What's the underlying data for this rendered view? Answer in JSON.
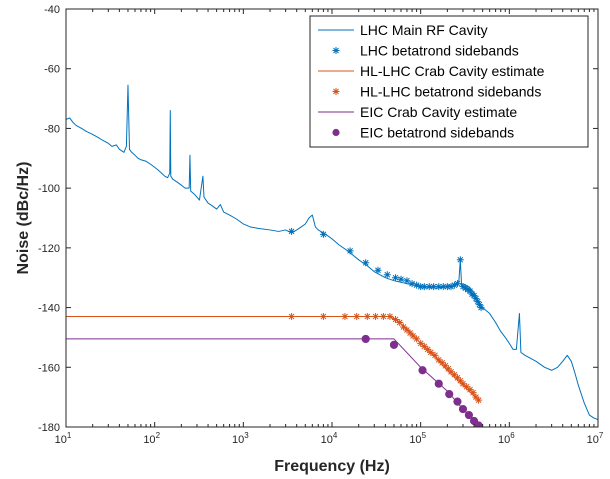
{
  "chart_data": {
    "type": "line",
    "title": "",
    "xlabel": "Frequency (Hz)",
    "ylabel": "Noise (dBc/Hz)",
    "xscale": "log",
    "xlim": [
      10,
      10000000
    ],
    "ylim": [
      -180,
      -40
    ],
    "grid": false,
    "legend_placement": "top-right",
    "x_ticks": [
      {
        "value": 10,
        "base": "10",
        "exp": "1"
      },
      {
        "value": 100,
        "base": "10",
        "exp": "2"
      },
      {
        "value": 1000,
        "base": "10",
        "exp": "3"
      },
      {
        "value": 10000,
        "base": "10",
        "exp": "4"
      },
      {
        "value": 100000,
        "base": "10",
        "exp": "5"
      },
      {
        "value": 1000000,
        "base": "10",
        "exp": "6"
      },
      {
        "value": 10000000,
        "base": "10",
        "exp": "7"
      }
    ],
    "y_ticks": [
      {
        "value": -40,
        "label": "-40"
      },
      {
        "value": -60,
        "label": "-60"
      },
      {
        "value": -80,
        "label": "-80"
      },
      {
        "value": -100,
        "label": "-100"
      },
      {
        "value": -120,
        "label": "-120"
      },
      {
        "value": -140,
        "label": "-140"
      },
      {
        "value": -160,
        "label": "-160"
      },
      {
        "value": -180,
        "label": "-180"
      }
    ],
    "series": [
      {
        "name": "LHC Main RF Cavity",
        "kind": "line",
        "color": "#0072bd",
        "points": [
          [
            10,
            -77
          ],
          [
            11,
            -76.5
          ],
          [
            12,
            -78
          ],
          [
            13,
            -79
          ],
          [
            15,
            -80
          ],
          [
            17,
            -81
          ],
          [
            20,
            -82
          ],
          [
            23,
            -83
          ],
          [
            26,
            -84
          ],
          [
            30,
            -85
          ],
          [
            33,
            -86
          ],
          [
            37,
            -85.5
          ],
          [
            40,
            -87
          ],
          [
            45,
            -88
          ],
          [
            48,
            -86
          ],
          [
            50,
            -65.5
          ],
          [
            52,
            -87
          ],
          [
            55,
            -88
          ],
          [
            60,
            -89
          ],
          [
            65,
            -90
          ],
          [
            70,
            -90.5
          ],
          [
            80,
            -91
          ],
          [
            90,
            -92
          ],
          [
            100,
            -93
          ],
          [
            110,
            -94
          ],
          [
            120,
            -95
          ],
          [
            130,
            -96
          ],
          [
            140,
            -96.5
          ],
          [
            148,
            -95
          ],
          [
            150,
            -74
          ],
          [
            152,
            -96
          ],
          [
            160,
            -97
          ],
          [
            180,
            -98
          ],
          [
            200,
            -99
          ],
          [
            220,
            -100
          ],
          [
            245,
            -100
          ],
          [
            250,
            -89
          ],
          [
            255,
            -101
          ],
          [
            280,
            -102
          ],
          [
            320,
            -104
          ],
          [
            350,
            -96
          ],
          [
            360,
            -103
          ],
          [
            400,
            -105
          ],
          [
            450,
            -106
          ],
          [
            500,
            -107
          ],
          [
            550,
            -105.5
          ],
          [
            600,
            -108
          ],
          [
            700,
            -109
          ],
          [
            800,
            -110
          ],
          [
            900,
            -111
          ],
          [
            1000,
            -112
          ],
          [
            1200,
            -113
          ],
          [
            1500,
            -113.5
          ],
          [
            2000,
            -114
          ],
          [
            2500,
            -114.5
          ],
          [
            3000,
            -114
          ],
          [
            3500,
            -115
          ],
          [
            4000,
            -114
          ],
          [
            4500,
            -113
          ],
          [
            5000,
            -112
          ],
          [
            5500,
            -110
          ],
          [
            6000,
            -109
          ],
          [
            6500,
            -113
          ],
          [
            7000,
            -114
          ],
          [
            8000,
            -115
          ],
          [
            9000,
            -116
          ],
          [
            10000,
            -117
          ],
          [
            12000,
            -119
          ],
          [
            15000,
            -121
          ],
          [
            20000,
            -124
          ],
          [
            25000,
            -126
          ],
          [
            30000,
            -128
          ],
          [
            40000,
            -130
          ],
          [
            50000,
            -131
          ],
          [
            70000,
            -132
          ],
          [
            100000,
            -133
          ],
          [
            150000,
            -133.5
          ],
          [
            200000,
            -133
          ],
          [
            250000,
            -132
          ],
          [
            270000,
            -131
          ],
          [
            280000,
            -124
          ],
          [
            290000,
            -133
          ],
          [
            300000,
            -132
          ],
          [
            350000,
            -133
          ],
          [
            400000,
            -135
          ],
          [
            450000,
            -138
          ],
          [
            500000,
            -140
          ],
          [
            600000,
            -142
          ],
          [
            700000,
            -145
          ],
          [
            800000,
            -148
          ],
          [
            900000,
            -150
          ],
          [
            1000000,
            -152
          ],
          [
            1100000,
            -154
          ],
          [
            1200000,
            -154
          ],
          [
            1300000,
            -142
          ],
          [
            1350000,
            -155
          ],
          [
            1500000,
            -156
          ],
          [
            2000000,
            -158
          ],
          [
            2500000,
            -160
          ],
          [
            3000000,
            -161
          ],
          [
            3500000,
            -160
          ],
          [
            4000000,
            -158
          ],
          [
            4500000,
            -156
          ],
          [
            5000000,
            -158
          ],
          [
            5500000,
            -162
          ],
          [
            6000000,
            -166
          ],
          [
            7000000,
            -172
          ],
          [
            8000000,
            -176
          ],
          [
            9000000,
            -177
          ],
          [
            10000000,
            -177.5
          ]
        ]
      },
      {
        "name": "LHC betatrond sidebands",
        "kind": "marker-star",
        "color": "#0072bd",
        "points": [
          [
            3500,
            -114.5
          ],
          [
            8000,
            -115.5
          ],
          [
            16000,
            -121
          ],
          [
            24000,
            -125
          ],
          [
            33000,
            -127.5
          ],
          [
            42000,
            -129
          ],
          [
            52000,
            -130
          ],
          [
            60000,
            -130.5
          ],
          [
            70000,
            -131
          ],
          [
            80000,
            -132
          ],
          [
            90000,
            -132.5
          ],
          [
            100000,
            -133
          ],
          [
            110000,
            -133
          ],
          [
            125000,
            -133
          ],
          [
            140000,
            -133
          ],
          [
            160000,
            -133
          ],
          [
            180000,
            -133
          ],
          [
            200000,
            -133
          ],
          [
            220000,
            -133
          ],
          [
            240000,
            -132.5
          ],
          [
            260000,
            -132
          ],
          [
            280000,
            -124
          ],
          [
            300000,
            -133
          ],
          [
            320000,
            -133.5
          ],
          [
            340000,
            -134
          ],
          [
            360000,
            -134.5
          ],
          [
            380000,
            -135.5
          ],
          [
            400000,
            -136
          ],
          [
            420000,
            -137
          ],
          [
            440000,
            -138
          ],
          [
            460000,
            -139
          ],
          [
            480000,
            -140
          ]
        ]
      },
      {
        "name": "HL-LHC Crab Cavity estimate",
        "kind": "line",
        "color": "#d95319",
        "points": [
          [
            10,
            -143
          ],
          [
            45000,
            -143
          ],
          [
            55000,
            -144.5
          ],
          [
            70000,
            -147
          ],
          [
            100000,
            -152
          ],
          [
            150000,
            -157
          ],
          [
            200000,
            -161
          ],
          [
            300000,
            -166
          ],
          [
            450000,
            -171
          ]
        ]
      },
      {
        "name": "HL-LHC betatrond sidebands",
        "kind": "marker-star",
        "color": "#d95319",
        "points": [
          [
            3500,
            -143
          ],
          [
            8000,
            -143
          ],
          [
            14000,
            -143
          ],
          [
            19000,
            -143
          ],
          [
            25000,
            -143
          ],
          [
            31000,
            -143
          ],
          [
            38000,
            -143
          ],
          [
            45000,
            -143
          ],
          [
            52000,
            -144
          ],
          [
            58000,
            -145
          ],
          [
            64000,
            -146.5
          ],
          [
            70000,
            -147.5
          ],
          [
            76000,
            -148.5
          ],
          [
            82000,
            -149.5
          ],
          [
            90000,
            -150.5
          ],
          [
            100000,
            -152
          ],
          [
            110000,
            -153
          ],
          [
            120000,
            -154
          ],
          [
            130000,
            -155
          ],
          [
            145000,
            -156
          ],
          [
            160000,
            -157.5
          ],
          [
            175000,
            -158.5
          ],
          [
            190000,
            -159.5
          ],
          [
            205000,
            -160.5
          ],
          [
            220000,
            -161.5
          ],
          [
            240000,
            -162.5
          ],
          [
            260000,
            -163.5
          ],
          [
            280000,
            -164.5
          ],
          [
            300000,
            -165.5
          ],
          [
            330000,
            -166.5
          ],
          [
            360000,
            -167.5
          ],
          [
            390000,
            -168.5
          ],
          [
            420000,
            -170
          ],
          [
            450000,
            -171
          ]
        ]
      },
      {
        "name": "EIC Crab Cavity estimate",
        "kind": "line",
        "color": "#7e2f8e",
        "points": [
          [
            10,
            -150.5
          ],
          [
            50000,
            -150.5
          ],
          [
            100000,
            -160
          ],
          [
            200000,
            -168
          ],
          [
            300000,
            -174
          ],
          [
            450000,
            -179
          ]
        ]
      },
      {
        "name": "EIC betatrond sidebands",
        "kind": "marker-dot",
        "color": "#7e2f8e",
        "points": [
          [
            24000,
            -150.5
          ],
          [
            50000,
            -152.5
          ],
          [
            105000,
            -161
          ],
          [
            160000,
            -165.5
          ],
          [
            210000,
            -169
          ],
          [
            260000,
            -171.5
          ],
          [
            300000,
            -174
          ],
          [
            350000,
            -176
          ],
          [
            400000,
            -178
          ],
          [
            450000,
            -179.5
          ]
        ]
      }
    ]
  }
}
